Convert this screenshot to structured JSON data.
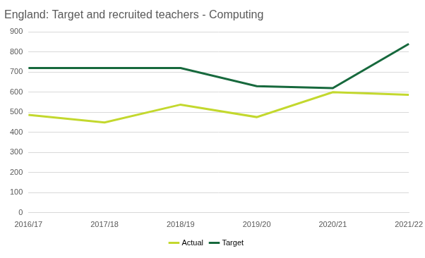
{
  "chart_data": {
    "type": "line",
    "title": "England: Target and recruited teachers - Computing",
    "categories": [
      "2016/17",
      "2017/18",
      "2018/19",
      "2019/20",
      "2020/21",
      "2021/22"
    ],
    "series": [
      {
        "name": "Actual",
        "color": "#c3d82e",
        "marker": "none",
        "values": [
          487,
          449,
          538,
          476,
          600,
          587
        ]
      },
      {
        "name": "Target",
        "color": "#17693d",
        "marker": "none",
        "values": [
          720,
          720,
          720,
          630,
          620,
          840
        ]
      }
    ],
    "ylim": [
      0,
      900
    ],
    "yticks": [
      0,
      100,
      200,
      300,
      400,
      500,
      600,
      700,
      800,
      900
    ],
    "grid": true,
    "legend": "bottom"
  }
}
